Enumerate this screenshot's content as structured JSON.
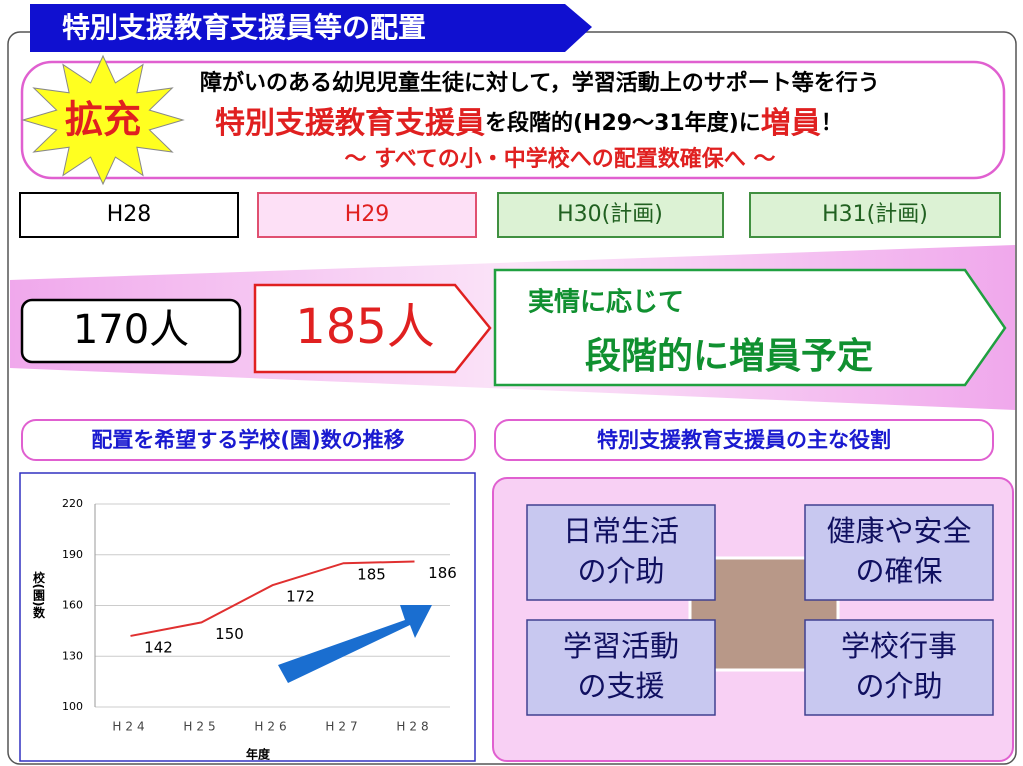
{
  "header": {
    "title": "特別支援教育支援員等の配置"
  },
  "summary": {
    "badge": "拡充",
    "line1": "障がいのある幼児児童生徒に対して，学習活動上のサポート等を行う",
    "line2": [
      "特別支援教育支援員",
      "を段階的(H29～31年度)に",
      "増員",
      "！"
    ],
    "line3": "～ すべての小・中学校への配置数確保へ ～"
  },
  "years": [
    "H28",
    "H29",
    "H30(計画)",
    "H31(計画)"
  ],
  "staff": {
    "h28": "170人",
    "h29": "185人",
    "plan": [
      "実情に応じて",
      "段階的に増員予定"
    ]
  },
  "sections": [
    "配置を希望する学校(園)数の推移",
    "特別支援教育支援員の主な役割"
  ],
  "roles": [
    [
      "日常生活",
      "の介助"
    ],
    [
      "健康や安全",
      "の確保"
    ],
    [
      "学習活動",
      "の支援"
    ],
    [
      "学校行事",
      "の介助"
    ]
  ],
  "chart_data": {
    "type": "line",
    "x_label": "年度",
    "y_label": "校(園)数",
    "categories": [
      "H24",
      "H25",
      "H26",
      "H27",
      "H28"
    ],
    "values": [
      142,
      150,
      172,
      185,
      186
    ],
    "color": "#e03030",
    "ylim": [
      100,
      220
    ],
    "yticks": [
      100,
      130,
      160,
      190,
      220
    ],
    "grid": true
  }
}
